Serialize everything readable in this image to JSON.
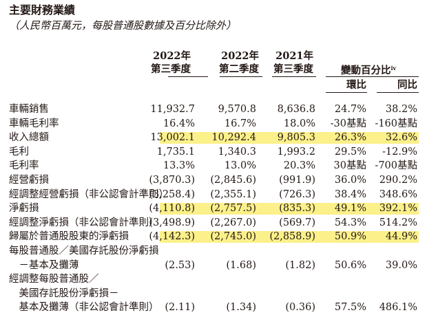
{
  "title": "主要財務業績",
  "subtitle": "（人民幣百萬元，每股普通股數據及百分比除外）",
  "headers": {
    "col1_year": "2022年",
    "col1_q": "第三季度",
    "col2_year": "2022年",
    "col2_q": "第二季度",
    "col3_year": "2021年",
    "col3_q": "第三季度",
    "change": "變動百分比",
    "change_note": "iv",
    "qoq": "環比",
    "yoy": "同比"
  },
  "highlight_color": "#fbf08a",
  "rows": [
    {
      "label": "車輛銷售",
      "v1": "11,932.7",
      "v2": "9,570.8",
      "v3": "8,636.8",
      "v4": "24.7%",
      "v5": "38.2%",
      "highlight": false
    },
    {
      "label": "車輛毛利率",
      "v1": "16.4%",
      "v2": "16.7%",
      "v3": "18.0%",
      "v4": "-30基點",
      "v5": "-160基點",
      "highlight": false
    },
    {
      "label": "收入總額",
      "v1": "13,002.1",
      "v2": "10,292.4",
      "v3": "9,805.3",
      "v4": "26.3%",
      "v5": "32.6%",
      "highlight": true
    },
    {
      "label": "毛利",
      "v1": "1,735.1",
      "v2": "1,340.3",
      "v3": "1,993.2",
      "v4": "29.5%",
      "v5": "-12.9%",
      "highlight": false
    },
    {
      "label": "毛利率",
      "v1": "13.3%",
      "v2": "13.0%",
      "v3": "20.3%",
      "v4": "30基點",
      "v5": "-700基點",
      "highlight": false
    },
    {
      "label": "經營虧損",
      "v1": "(3,870.3)",
      "v2": "(2,845.6)",
      "v3": "(991.9)",
      "v4": "36.0%",
      "v5": "290.2%",
      "highlight": false
    },
    {
      "label": "經調整經營虧損（非公認會計準則）",
      "v1": "(3,258.4)",
      "v2": "(2,355.1)",
      "v3": "(726.3)",
      "v4": "38.4%",
      "v5": "348.6%",
      "highlight": false
    },
    {
      "label": "淨虧損",
      "v1": "(4,110.8)",
      "v2": "(2,757.5)",
      "v3": "(835.3)",
      "v4": "49.1%",
      "v5": "392.1%",
      "highlight": true
    },
    {
      "label": "經調整淨虧損（非公認會計準則）",
      "v1": "(3,498.9)",
      "v2": "(2,267.0)",
      "v3": "(569.7)",
      "v4": "54.3%",
      "v5": "514.2%",
      "highlight": false
    },
    {
      "label": "歸屬於普通股股東的淨虧損",
      "v1": "(4,142.3)",
      "v2": "(2,745.0)",
      "v3": "(2,858.9)",
      "v4": "50.9%",
      "v5": "44.9%",
      "highlight": true
    },
    {
      "label": "每股普通股／美國存託股份淨虧損",
      "v1": "",
      "v2": "",
      "v3": "",
      "v4": "",
      "v5": "",
      "highlight": false
    },
    {
      "label": "　－基本及攤薄",
      "v1": "(2.53)",
      "v2": "(1.68)",
      "v3": "(1.82)",
      "v4": "50.6%",
      "v5": "39.0%",
      "highlight": false
    },
    {
      "label": "經調整每股普通股／",
      "v1": "",
      "v2": "",
      "v3": "",
      "v4": "",
      "v5": "",
      "highlight": false
    },
    {
      "label": "　美國存託股份淨虧損－",
      "v1": "",
      "v2": "",
      "v3": "",
      "v4": "",
      "v5": "",
      "highlight": false
    },
    {
      "label": "　基本及攤薄（非公認會計準則）",
      "v1": "(2.11)",
      "v2": "(1.34)",
      "v3": "(0.36)",
      "v4": "57.5%",
      "v5": "486.1%",
      "highlight": false
    }
  ]
}
